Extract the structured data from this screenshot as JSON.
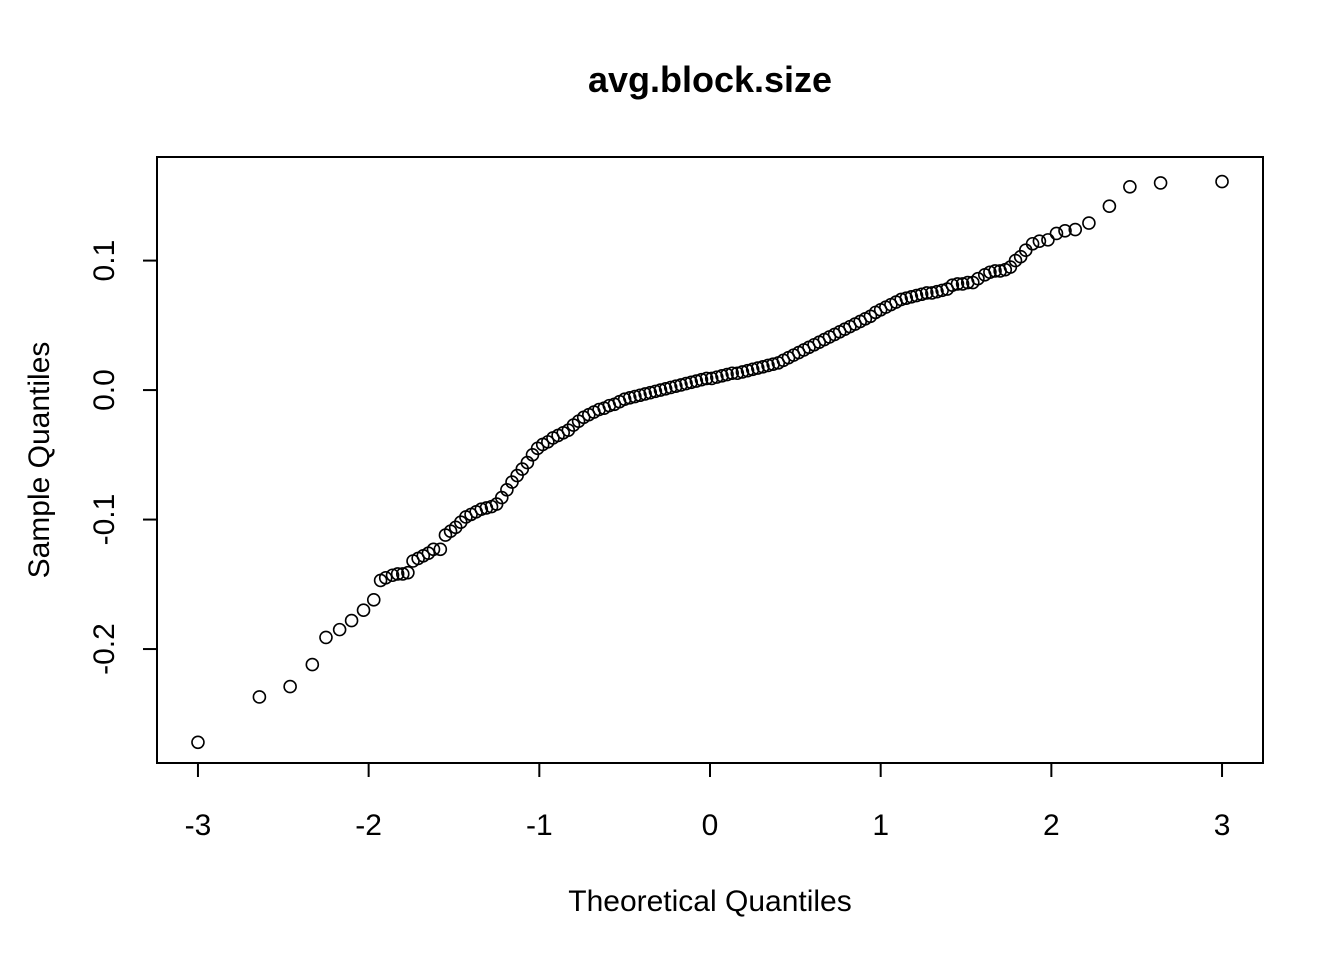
{
  "chart_data": {
    "type": "scatter",
    "title": "avg.block.size",
    "xlabel": "Theoretical Quantiles",
    "ylabel": "Sample Quantiles",
    "xlim": [
      -3.24,
      3.24
    ],
    "ylim": [
      -0.288,
      0.18
    ],
    "grid": false,
    "legend": "none",
    "x_ticks": [
      -3,
      -2,
      -1,
      0,
      1,
      2,
      3
    ],
    "x_tick_labels": [
      "-3",
      "-2",
      "-1",
      "0",
      "1",
      "2",
      "3"
    ],
    "y_ticks": [
      -0.2,
      -0.1,
      0.0,
      0.1
    ],
    "y_tick_labels": [
      "-0.2",
      "-0.1",
      "0.0",
      "0.1"
    ],
    "series": [
      {
        "marker": "open-circle",
        "color": "#000000",
        "points": [
          [
            -3.0,
            -0.272
          ],
          [
            -2.64,
            -0.237
          ],
          [
            -2.46,
            -0.229
          ],
          [
            -2.33,
            -0.212
          ],
          [
            -2.25,
            -0.191
          ],
          [
            -2.17,
            -0.185
          ],
          [
            -2.1,
            -0.178
          ],
          [
            -2.03,
            -0.17
          ],
          [
            -1.97,
            -0.162
          ],
          [
            -1.93,
            -0.147
          ],
          [
            -1.9,
            -0.145
          ],
          [
            -1.86,
            -0.143
          ],
          [
            -1.83,
            -0.142
          ],
          [
            -1.8,
            -0.142
          ],
          [
            -1.77,
            -0.141
          ],
          [
            -1.74,
            -0.132
          ],
          [
            -1.71,
            -0.13
          ],
          [
            -1.68,
            -0.128
          ],
          [
            -1.65,
            -0.126
          ],
          [
            -1.62,
            -0.123
          ],
          [
            -1.58,
            -0.123
          ],
          [
            -1.55,
            -0.112
          ],
          [
            -1.52,
            -0.109
          ],
          [
            -1.49,
            -0.106
          ],
          [
            -1.46,
            -0.102
          ],
          [
            -1.43,
            -0.098
          ],
          [
            -1.4,
            -0.096
          ],
          [
            -1.37,
            -0.094
          ],
          [
            -1.34,
            -0.092
          ],
          [
            -1.31,
            -0.091
          ],
          [
            -1.28,
            -0.09
          ],
          [
            -1.25,
            -0.088
          ],
          [
            -1.22,
            -0.083
          ],
          [
            -1.19,
            -0.077
          ],
          [
            -1.16,
            -0.071
          ],
          [
            -1.13,
            -0.066
          ],
          [
            -1.1,
            -0.061
          ],
          [
            -1.07,
            -0.056
          ],
          [
            -1.04,
            -0.05
          ],
          [
            -1.01,
            -0.045
          ],
          [
            -0.98,
            -0.042
          ],
          [
            -0.95,
            -0.04
          ],
          [
            -0.92,
            -0.037
          ],
          [
            -0.89,
            -0.035
          ],
          [
            -0.86,
            -0.033
          ],
          [
            -0.83,
            -0.031
          ],
          [
            -0.8,
            -0.027
          ],
          [
            -0.77,
            -0.024
          ],
          [
            -0.74,
            -0.021
          ],
          [
            -0.71,
            -0.019
          ],
          [
            -0.68,
            -0.017
          ],
          [
            -0.65,
            -0.015
          ],
          [
            -0.62,
            -0.014
          ],
          [
            -0.59,
            -0.012
          ],
          [
            -0.56,
            -0.011
          ],
          [
            -0.53,
            -0.009
          ],
          [
            -0.5,
            -0.007
          ],
          [
            -0.47,
            -0.006
          ],
          [
            -0.44,
            -0.005
          ],
          [
            -0.41,
            -0.004
          ],
          [
            -0.38,
            -0.003
          ],
          [
            -0.35,
            -0.002
          ],
          [
            -0.32,
            -0.001
          ],
          [
            -0.29,
            0.0
          ],
          [
            -0.26,
            0.001
          ],
          [
            -0.23,
            0.002
          ],
          [
            -0.2,
            0.003
          ],
          [
            -0.17,
            0.004
          ],
          [
            -0.14,
            0.005
          ],
          [
            -0.11,
            0.006
          ],
          [
            -0.08,
            0.007
          ],
          [
            -0.05,
            0.008
          ],
          [
            -0.02,
            0.009
          ],
          [
            0.01,
            0.009
          ],
          [
            0.04,
            0.01
          ],
          [
            0.07,
            0.011
          ],
          [
            0.1,
            0.012
          ],
          [
            0.13,
            0.013
          ],
          [
            0.16,
            0.013
          ],
          [
            0.19,
            0.014
          ],
          [
            0.22,
            0.015
          ],
          [
            0.25,
            0.016
          ],
          [
            0.28,
            0.017
          ],
          [
            0.31,
            0.018
          ],
          [
            0.34,
            0.019
          ],
          [
            0.37,
            0.02
          ],
          [
            0.4,
            0.021
          ],
          [
            0.43,
            0.023
          ],
          [
            0.46,
            0.025
          ],
          [
            0.49,
            0.027
          ],
          [
            0.52,
            0.029
          ],
          [
            0.55,
            0.031
          ],
          [
            0.58,
            0.033
          ],
          [
            0.61,
            0.035
          ],
          [
            0.64,
            0.037
          ],
          [
            0.67,
            0.039
          ],
          [
            0.7,
            0.041
          ],
          [
            0.73,
            0.043
          ],
          [
            0.76,
            0.045
          ],
          [
            0.79,
            0.047
          ],
          [
            0.82,
            0.049
          ],
          [
            0.85,
            0.051
          ],
          [
            0.88,
            0.053
          ],
          [
            0.91,
            0.055
          ],
          [
            0.94,
            0.057
          ],
          [
            0.97,
            0.06
          ],
          [
            1.0,
            0.062
          ],
          [
            1.03,
            0.064
          ],
          [
            1.06,
            0.066
          ],
          [
            1.09,
            0.068
          ],
          [
            1.12,
            0.07
          ],
          [
            1.15,
            0.071
          ],
          [
            1.18,
            0.072
          ],
          [
            1.21,
            0.073
          ],
          [
            1.24,
            0.074
          ],
          [
            1.27,
            0.075
          ],
          [
            1.3,
            0.075
          ],
          [
            1.33,
            0.076
          ],
          [
            1.36,
            0.077
          ],
          [
            1.39,
            0.078
          ],
          [
            1.42,
            0.081
          ],
          [
            1.45,
            0.082
          ],
          [
            1.48,
            0.082
          ],
          [
            1.51,
            0.083
          ],
          [
            1.54,
            0.083
          ],
          [
            1.57,
            0.086
          ],
          [
            1.61,
            0.089
          ],
          [
            1.64,
            0.091
          ],
          [
            1.67,
            0.092
          ],
          [
            1.7,
            0.092
          ],
          [
            1.73,
            0.093
          ],
          [
            1.76,
            0.095
          ],
          [
            1.79,
            0.1
          ],
          [
            1.82,
            0.103
          ],
          [
            1.85,
            0.108
          ],
          [
            1.89,
            0.113
          ],
          [
            1.93,
            0.115
          ],
          [
            1.98,
            0.116
          ],
          [
            2.03,
            0.121
          ],
          [
            2.08,
            0.123
          ],
          [
            2.14,
            0.124
          ],
          [
            2.22,
            0.129
          ],
          [
            2.34,
            0.142
          ],
          [
            2.46,
            0.157
          ],
          [
            2.64,
            0.16
          ],
          [
            3.0,
            0.161
          ]
        ]
      }
    ]
  }
}
